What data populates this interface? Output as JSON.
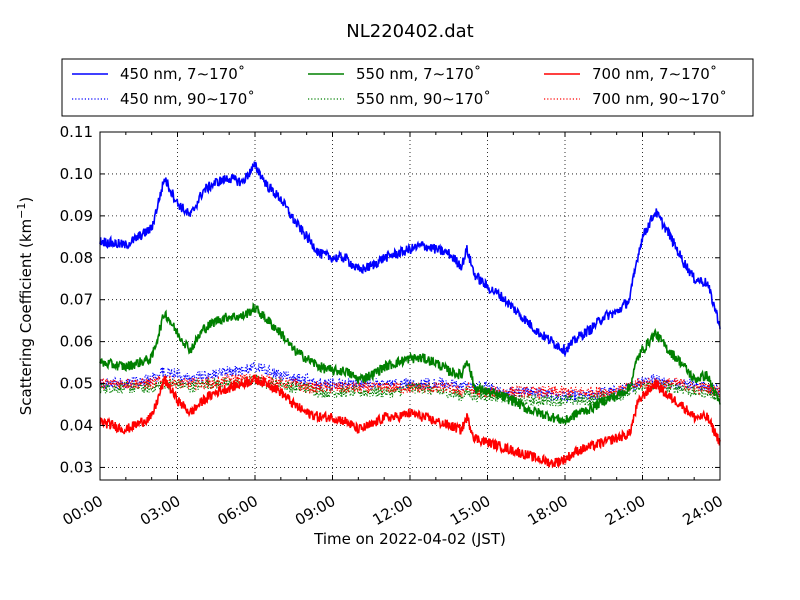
{
  "chart_data": {
    "type": "line",
    "title": "NL220402.dat",
    "xlabel": "Time on 2022-04-02 (JST)",
    "ylabel_main": "Scattering Coefficient (km",
    "ylabel_sup": "−1",
    "ylabel_end": ")",
    "xlim": [
      0,
      24
    ],
    "ylim": [
      0.027,
      0.11
    ],
    "grid": true,
    "legend_position": "top",
    "x_ticks": [
      0,
      3,
      6,
      9,
      12,
      15,
      18,
      21,
      24
    ],
    "x_tick_labels": [
      "00:00",
      "03:00",
      "06:00",
      "09:00",
      "12:00",
      "15:00",
      "18:00",
      "21:00",
      "24:00"
    ],
    "y_ticks": [
      0.03,
      0.04,
      0.05,
      0.06,
      0.07,
      0.08,
      0.09,
      0.1,
      0.11
    ],
    "y_tick_labels": [
      "0.03",
      "0.04",
      "0.05",
      "0.06",
      "0.07",
      "0.08",
      "0.09",
      "0.10",
      "0.11"
    ],
    "x": [
      0,
      1,
      2,
      2.5,
      3,
      3.5,
      4,
      4.5,
      5,
      5.5,
      6,
      6.5,
      7,
      7.5,
      8,
      8.5,
      9,
      9.5,
      10,
      10.5,
      11,
      11.5,
      12,
      12.5,
      13,
      13.5,
      14,
      14.2,
      14.5,
      15,
      15.5,
      16,
      16.5,
      17,
      17.5,
      18,
      18.5,
      19,
      19.5,
      20,
      20.5,
      20.8,
      21,
      21.5,
      22,
      22.5,
      23,
      23.5,
      24
    ],
    "series": [
      {
        "name": "450 nm, 7∼170˚",
        "color": "#0000ff",
        "style": "solid",
        "values": [
          0.084,
          0.083,
          0.087,
          0.099,
          0.093,
          0.09,
          0.096,
          0.098,
          0.099,
          0.098,
          0.102,
          0.097,
          0.094,
          0.089,
          0.085,
          0.081,
          0.08,
          0.08,
          0.077,
          0.078,
          0.08,
          0.081,
          0.082,
          0.083,
          0.082,
          0.081,
          0.078,
          0.082,
          0.076,
          0.073,
          0.071,
          0.068,
          0.065,
          0.062,
          0.06,
          0.058,
          0.061,
          0.063,
          0.066,
          0.067,
          0.07,
          0.08,
          0.085,
          0.091,
          0.086,
          0.08,
          0.075,
          0.074,
          0.064
        ]
      },
      {
        "name": "550 nm, 7∼170˚",
        "color": "#008000",
        "style": "solid",
        "values": [
          0.055,
          0.054,
          0.056,
          0.067,
          0.062,
          0.058,
          0.063,
          0.065,
          0.066,
          0.066,
          0.068,
          0.065,
          0.062,
          0.058,
          0.056,
          0.054,
          0.053,
          0.053,
          0.051,
          0.052,
          0.054,
          0.055,
          0.056,
          0.056,
          0.055,
          0.053,
          0.052,
          0.056,
          0.049,
          0.048,
          0.047,
          0.046,
          0.044,
          0.043,
          0.042,
          0.041,
          0.043,
          0.044,
          0.046,
          0.047,
          0.049,
          0.056,
          0.058,
          0.062,
          0.058,
          0.055,
          0.051,
          0.052,
          0.045
        ]
      },
      {
        "name": "700 nm, 7∼170˚",
        "color": "#ff0000",
        "style": "solid",
        "values": [
          0.041,
          0.039,
          0.042,
          0.051,
          0.046,
          0.043,
          0.046,
          0.048,
          0.049,
          0.05,
          0.051,
          0.05,
          0.048,
          0.045,
          0.043,
          0.042,
          0.042,
          0.041,
          0.039,
          0.04,
          0.042,
          0.042,
          0.043,
          0.042,
          0.041,
          0.04,
          0.039,
          0.042,
          0.037,
          0.036,
          0.035,
          0.034,
          0.033,
          0.032,
          0.031,
          0.032,
          0.034,
          0.035,
          0.036,
          0.037,
          0.038,
          0.045,
          0.047,
          0.05,
          0.047,
          0.045,
          0.042,
          0.042,
          0.036
        ]
      },
      {
        "name": "450 nm, 90∼170˚",
        "color": "#0000ff",
        "style": "dotted",
        "values": [
          0.05,
          0.05,
          0.051,
          0.053,
          0.052,
          0.051,
          0.052,
          0.052,
          0.053,
          0.053,
          0.054,
          0.053,
          0.052,
          0.051,
          0.051,
          0.05,
          0.05,
          0.05,
          0.05,
          0.05,
          0.05,
          0.05,
          0.05,
          0.05,
          0.05,
          0.05,
          0.049,
          0.05,
          0.049,
          0.049,
          0.048,
          0.048,
          0.048,
          0.048,
          0.047,
          0.047,
          0.047,
          0.047,
          0.048,
          0.048,
          0.049,
          0.05,
          0.051,
          0.051,
          0.05,
          0.05,
          0.05,
          0.049,
          0.048
        ]
      },
      {
        "name": "550 nm, 90∼170˚",
        "color": "#008000",
        "style": "dotted",
        "values": [
          0.049,
          0.049,
          0.049,
          0.05,
          0.05,
          0.049,
          0.05,
          0.05,
          0.05,
          0.05,
          0.051,
          0.05,
          0.05,
          0.049,
          0.049,
          0.048,
          0.048,
          0.048,
          0.048,
          0.048,
          0.048,
          0.048,
          0.049,
          0.049,
          0.048,
          0.048,
          0.047,
          0.048,
          0.047,
          0.047,
          0.047,
          0.046,
          0.046,
          0.046,
          0.046,
          0.046,
          0.046,
          0.046,
          0.047,
          0.047,
          0.048,
          0.049,
          0.049,
          0.05,
          0.049,
          0.049,
          0.048,
          0.048,
          0.047
        ]
      },
      {
        "name": "700 nm, 90∼170˚",
        "color": "#ff0000",
        "style": "dotted",
        "values": [
          0.05,
          0.05,
          0.05,
          0.051,
          0.05,
          0.05,
          0.05,
          0.05,
          0.051,
          0.051,
          0.051,
          0.051,
          0.05,
          0.05,
          0.049,
          0.049,
          0.049,
          0.049,
          0.049,
          0.049,
          0.049,
          0.049,
          0.049,
          0.049,
          0.049,
          0.049,
          0.048,
          0.049,
          0.048,
          0.048,
          0.048,
          0.048,
          0.048,
          0.048,
          0.048,
          0.048,
          0.048,
          0.048,
          0.048,
          0.048,
          0.049,
          0.05,
          0.05,
          0.05,
          0.05,
          0.05,
          0.049,
          0.049,
          0.048
        ]
      }
    ],
    "legend_order": [
      0,
      3,
      1,
      4,
      2,
      5
    ]
  }
}
